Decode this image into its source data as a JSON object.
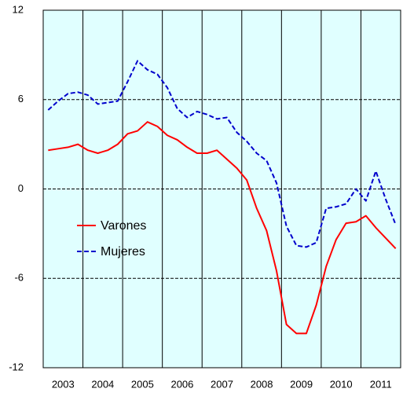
{
  "chart_data": {
    "type": "line",
    "x": [
      2003.125,
      2003.375,
      2003.625,
      2003.875,
      2004.125,
      2004.375,
      2004.625,
      2004.875,
      2005.125,
      2005.375,
      2005.625,
      2005.875,
      2006.125,
      2006.375,
      2006.625,
      2006.875,
      2007.125,
      2007.375,
      2007.625,
      2007.875,
      2008.125,
      2008.375,
      2008.625,
      2008.875,
      2009.125,
      2009.375,
      2009.625,
      2009.875,
      2010.125,
      2010.375,
      2010.625,
      2010.875,
      2011.125,
      2011.375,
      2011.625,
      2011.875
    ],
    "series": [
      {
        "name": "Varones",
        "color": "#ff0000",
        "dash": false,
        "values": [
          2.6,
          2.7,
          2.8,
          3.0,
          2.6,
          2.4,
          2.6,
          3.0,
          3.7,
          3.9,
          4.5,
          4.2,
          3.6,
          3.3,
          2.8,
          2.4,
          2.4,
          2.6,
          2.0,
          1.4,
          0.6,
          -1.3,
          -2.8,
          -5.5,
          -9.1,
          -9.7,
          -9.7,
          -7.8,
          -5.2,
          -3.4,
          -2.3,
          -2.2,
          -1.8,
          -2.6,
          -3.3,
          -4.0
        ]
      },
      {
        "name": "Mujeres",
        "color": "#0000cc",
        "dash": true,
        "values": [
          5.3,
          5.9,
          6.4,
          6.5,
          6.3,
          5.7,
          5.8,
          5.9,
          7.2,
          8.6,
          8.0,
          7.7,
          6.8,
          5.4,
          4.8,
          5.2,
          5.0,
          4.7,
          4.8,
          3.8,
          3.2,
          2.4,
          1.9,
          0.4,
          -2.5,
          -3.8,
          -3.9,
          -3.6,
          -1.3,
          -1.2,
          -1.0,
          0.0,
          -0.8,
          1.2,
          -0.7,
          -2.4
        ]
      }
    ],
    "xlim": [
      2003,
      2012
    ],
    "xticks": [
      {
        "value": 2003.5,
        "label": "2003"
      },
      {
        "value": 2004.5,
        "label": "2004"
      },
      {
        "value": 2005.5,
        "label": "2005"
      },
      {
        "value": 2006.5,
        "label": "2006"
      },
      {
        "value": 2007.5,
        "label": "2007"
      },
      {
        "value": 2008.5,
        "label": "2008"
      },
      {
        "value": 2009.5,
        "label": "2009"
      },
      {
        "value": 2010.5,
        "label": "2010"
      },
      {
        "value": 2011.5,
        "label": "2011"
      }
    ],
    "ylim": [
      -12,
      12
    ],
    "yticks": [
      -12,
      -6,
      0,
      6,
      12
    ],
    "grid": true,
    "legend": "left",
    "background": "#e0ffff"
  }
}
